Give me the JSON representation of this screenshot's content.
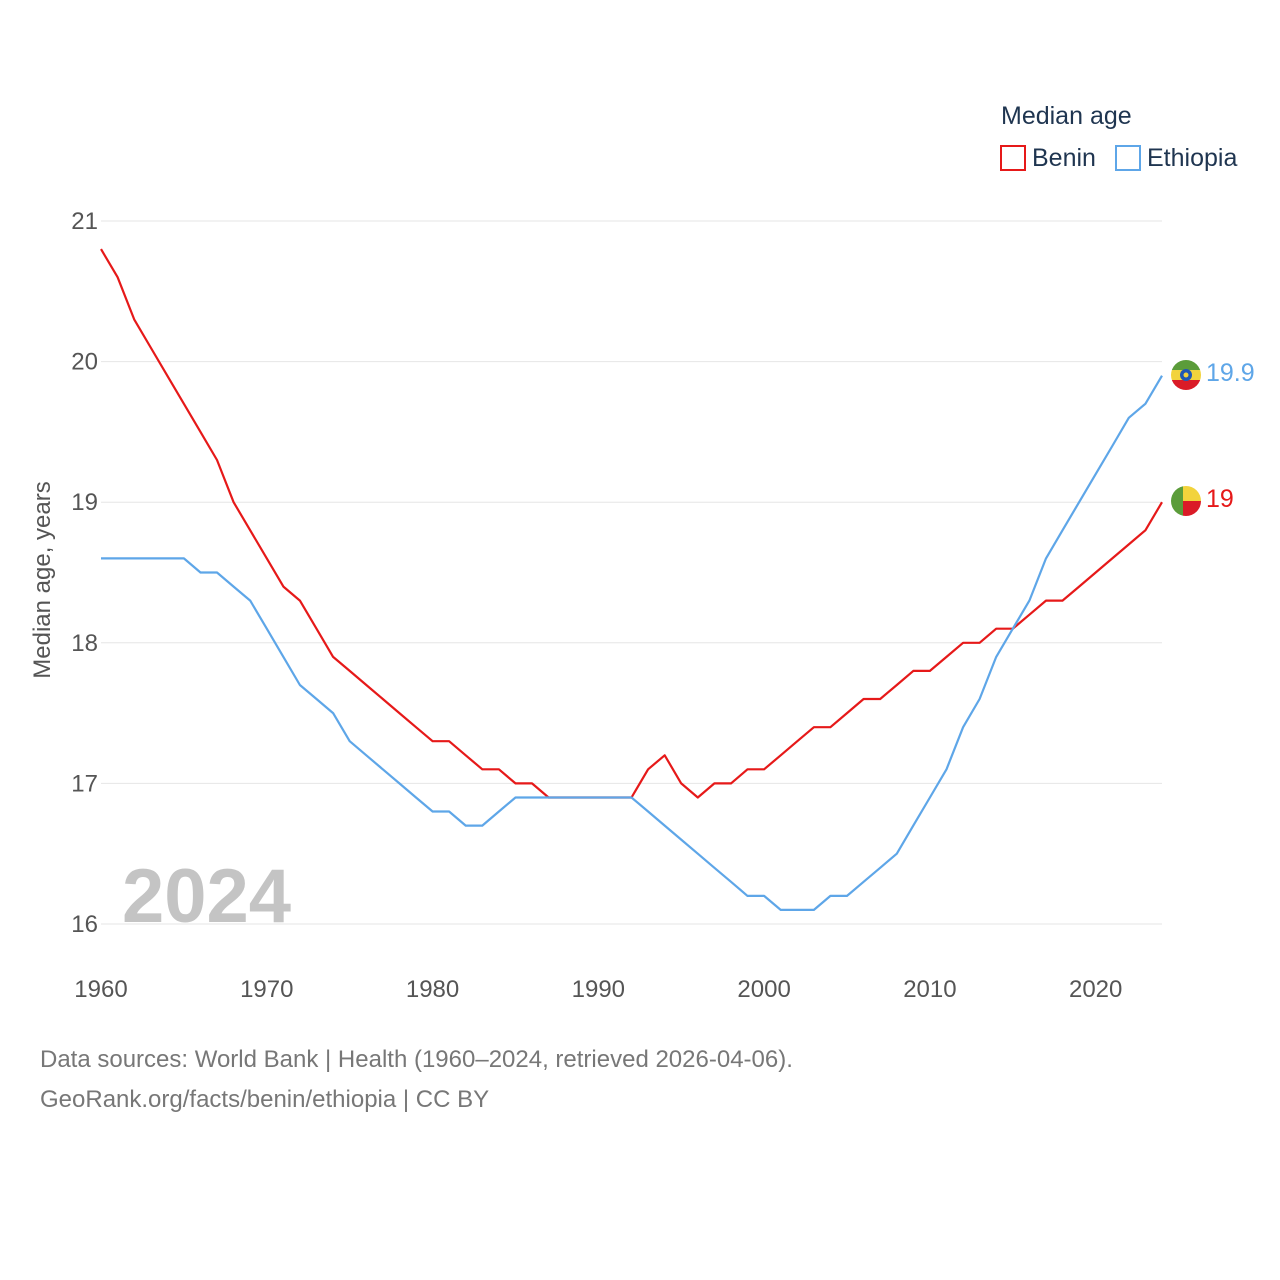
{
  "legend": {
    "title": "Median age",
    "items": [
      {
        "label": "Benin",
        "color": "#e61919"
      },
      {
        "label": "Ethiopia",
        "color": "#5ea6e8"
      }
    ]
  },
  "watermark_year": "2024",
  "end_labels": {
    "benin": "19",
    "ethiopia": "19.9"
  },
  "flags": {
    "benin": "benin-flag-icon",
    "ethiopia": "ethiopia-flag-icon"
  },
  "footer": {
    "line1": "Data sources: World Bank | Health (1960–2024, retrieved 2026-04-06).",
    "line2": "GeoRank.org/facts/benin/ethiopia | CC BY"
  },
  "chart_data": {
    "type": "line",
    "title": "Median age",
    "xlabel": "",
    "ylabel": "Median age, years",
    "xlim": [
      1960,
      2024
    ],
    "ylim": [
      16,
      21
    ],
    "x_ticks": [
      1960,
      1970,
      1980,
      1990,
      2000,
      2010,
      2020
    ],
    "y_ticks": [
      16,
      17,
      18,
      19,
      20,
      21
    ],
    "grid": true,
    "legend_position": "top-right",
    "x": [
      1960,
      1961,
      1962,
      1963,
      1964,
      1965,
      1966,
      1967,
      1968,
      1969,
      1970,
      1971,
      1972,
      1973,
      1974,
      1975,
      1976,
      1977,
      1978,
      1979,
      1980,
      1981,
      1982,
      1983,
      1984,
      1985,
      1986,
      1987,
      1988,
      1989,
      1990,
      1991,
      1992,
      1993,
      1994,
      1995,
      1996,
      1997,
      1998,
      1999,
      2000,
      2001,
      2002,
      2003,
      2004,
      2005,
      2006,
      2007,
      2008,
      2009,
      2010,
      2011,
      2012,
      2013,
      2014,
      2015,
      2016,
      2017,
      2018,
      2019,
      2020,
      2021,
      2022,
      2023,
      2024
    ],
    "series": [
      {
        "name": "Benin",
        "color": "#e61919",
        "values": [
          20.8,
          20.6,
          20.3,
          20.1,
          19.9,
          19.7,
          19.5,
          19.3,
          19.0,
          18.8,
          18.6,
          18.4,
          18.3,
          18.1,
          17.9,
          17.8,
          17.7,
          17.6,
          17.5,
          17.4,
          17.3,
          17.3,
          17.2,
          17.1,
          17.1,
          17.0,
          17.0,
          16.9,
          16.9,
          16.9,
          16.9,
          16.9,
          16.9,
          17.1,
          17.2,
          17.0,
          16.9,
          17.0,
          17.0,
          17.1,
          17.1,
          17.2,
          17.3,
          17.4,
          17.4,
          17.5,
          17.6,
          17.6,
          17.7,
          17.8,
          17.8,
          17.9,
          18.0,
          18.0,
          18.1,
          18.1,
          18.2,
          18.3,
          18.3,
          18.4,
          18.5,
          18.6,
          18.7,
          18.8,
          19.0
        ]
      },
      {
        "name": "Ethiopia",
        "color": "#5ea6e8",
        "values": [
          18.6,
          18.6,
          18.6,
          18.6,
          18.6,
          18.6,
          18.5,
          18.5,
          18.4,
          18.3,
          18.1,
          17.9,
          17.7,
          17.6,
          17.5,
          17.3,
          17.2,
          17.1,
          17.0,
          16.9,
          16.8,
          16.8,
          16.7,
          16.7,
          16.8,
          16.9,
          16.9,
          16.9,
          16.9,
          16.9,
          16.9,
          16.9,
          16.9,
          16.8,
          16.7,
          16.6,
          16.5,
          16.4,
          16.3,
          16.2,
          16.2,
          16.1,
          16.1,
          16.1,
          16.2,
          16.2,
          16.3,
          16.4,
          16.5,
          16.7,
          16.9,
          17.1,
          17.4,
          17.6,
          17.9,
          18.1,
          18.3,
          18.6,
          18.8,
          19.0,
          19.2,
          19.4,
          19.6,
          19.7,
          19.9
        ]
      }
    ]
  }
}
